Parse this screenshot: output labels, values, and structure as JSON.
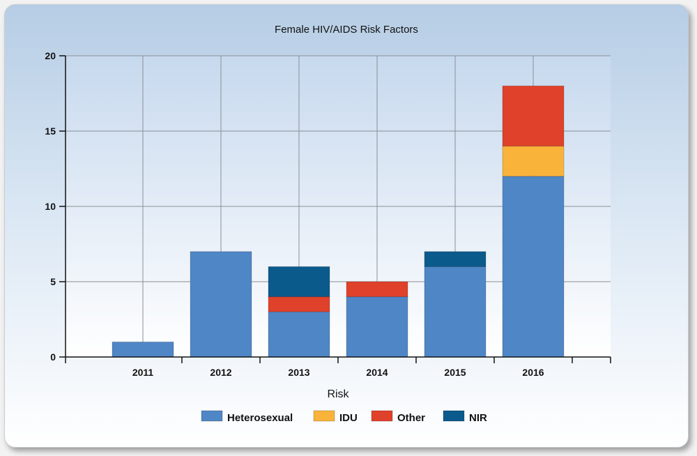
{
  "chart_data": {
    "type": "bar",
    "stacked": true,
    "title": "Female HIV/AIDS Risk Factors",
    "xlabel": "Risk",
    "ylabel": "",
    "categories": [
      "2011",
      "2012",
      "2013",
      "2014",
      "2015",
      "2016"
    ],
    "ylim": [
      0,
      20
    ],
    "yticks": [
      "0",
      "5",
      "10",
      "15",
      "20"
    ],
    "grid": true,
    "legend_position": "bottom",
    "series": [
      {
        "name": "Heterosexual",
        "values": [
          1,
          7,
          3,
          4,
          6,
          12
        ],
        "color": "#4f86c6"
      },
      {
        "name": "IDU",
        "values": [
          0,
          0,
          0,
          0,
          0,
          2
        ],
        "color": "#f9b33b"
      },
      {
        "name": "Other",
        "values": [
          0,
          0,
          1,
          1,
          0,
          4
        ],
        "color": "#e0412a"
      },
      {
        "name": "NIR",
        "values": [
          0,
          0,
          2,
          0,
          1,
          0
        ],
        "color": "#0b5a8c"
      }
    ]
  }
}
